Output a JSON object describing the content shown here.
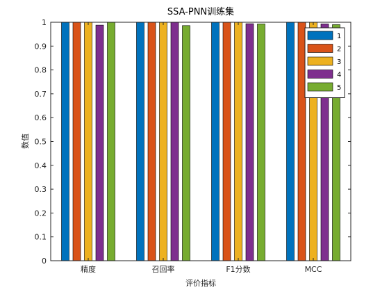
{
  "chart_data": {
    "type": "bar",
    "title": "SSA-PNN训练集",
    "xlabel": "评价指标",
    "ylabel": "数值",
    "categories": [
      "精度",
      "召回率",
      "F1分数",
      "MCC"
    ],
    "ylim": [
      0,
      1
    ],
    "yticks": [
      "0",
      "0.1",
      "0.2",
      "0.3",
      "0.4",
      "0.5",
      "0.6",
      "0.7",
      "0.8",
      "0.9",
      "1"
    ],
    "grid": false,
    "legend_position": "top-right",
    "series": [
      {
        "name": "1",
        "color": "#0072BD",
        "values": [
          1.0,
          1.0,
          1.0,
          1.0
        ]
      },
      {
        "name": "2",
        "color": "#D95319",
        "values": [
          1.0,
          1.0,
          1.0,
          1.0
        ]
      },
      {
        "name": "3",
        "color": "#EDB120",
        "values": [
          1.0,
          1.0,
          1.0,
          1.0
        ]
      },
      {
        "name": "4",
        "color": "#7E2F8E",
        "values": [
          0.988,
          1.0,
          0.994,
          0.993
        ]
      },
      {
        "name": "5",
        "color": "#77AC30",
        "values": [
          1.0,
          0.986,
          0.993,
          0.99
        ]
      }
    ]
  }
}
